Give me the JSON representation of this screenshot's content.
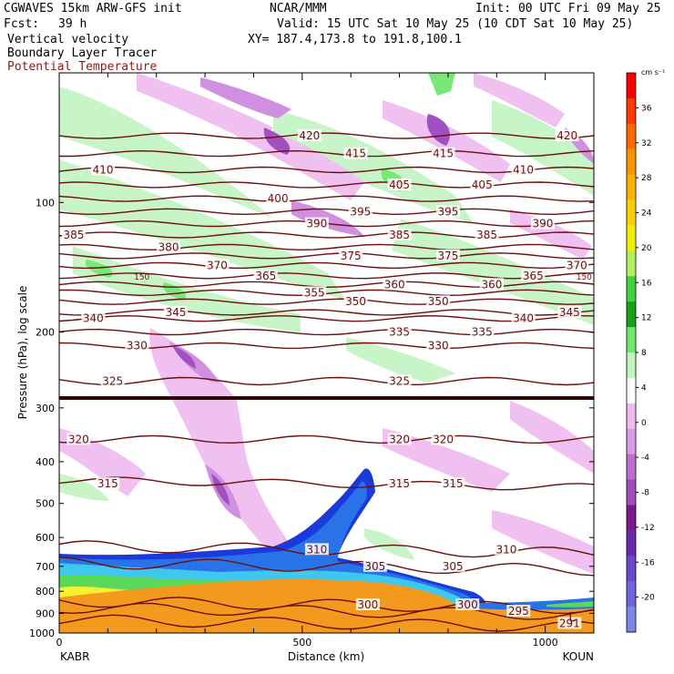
{
  "header": {
    "model": "CGWAVES 15km ARW-GFS init",
    "org": "NCAR/MMM",
    "init": "Init: 00 UTC Fri 09 May 25",
    "fcst_label": "Fcst:",
    "fcst_value": "39 h",
    "valid": "Valid: 15 UTC Sat 10 May 25 (10 CDT Sat 10 May 25)",
    "field1": "Vertical velocity",
    "field2": "Boundary Layer Tracer",
    "field3": "Potential Temperature",
    "xy": "XY= 187.4,173.8 to 191.8,100.1"
  },
  "colors": {
    "theta": "#6b0f0f",
    "field3_text": "#8b1a1a",
    "w_pos_light": "#c8f5c8",
    "w_pos": "#78e878",
    "w_pos_strong": "#22cc22",
    "w_neg_light": "#f0c0f0",
    "w_neg": "#d090e0",
    "w_neg_strong": "#a050c0",
    "w_neg_stronger": "#7a2a98",
    "tracer_orange": "#f39a1e",
    "tracer_yellow": "#f8f030",
    "tracer_green": "#5ad85a",
    "tracer_cyan": "#3ec8f0",
    "tracer_blue": "#2a72e8",
    "tracer_dblue": "#1a3adc"
  },
  "chart_data": {
    "type": "cross-section",
    "xlabel": "Distance (km)",
    "ylabel": "Pressure (hPa), log scale",
    "xlim": [
      0,
      1100
    ],
    "ylim": [
      1000,
      0
    ],
    "x_ticks": [
      {
        "value": 0,
        "label": "0"
      },
      {
        "value": 500,
        "label": "500"
      },
      {
        "value": 1000,
        "label": "1000"
      }
    ],
    "y_ticks": [
      {
        "value": 100,
        "label": "100"
      },
      {
        "value": 200,
        "label": "200"
      },
      {
        "value": 300,
        "label": "300"
      },
      {
        "value": 400,
        "label": "400"
      },
      {
        "value": 500,
        "label": "500"
      },
      {
        "value": 600,
        "label": "600"
      },
      {
        "value": 700,
        "label": "700"
      },
      {
        "value": 800,
        "label": "800"
      },
      {
        "value": 900,
        "label": "900"
      },
      {
        "value": 1000,
        "label": "1000"
      }
    ],
    "endpoints": {
      "left": "KABR",
      "right": "KOUN"
    },
    "colorbar": {
      "unit": "cm s⁻¹",
      "levels": [
        36,
        32,
        28,
        24,
        20,
        16,
        12,
        8,
        4,
        0,
        -4,
        -8,
        -12,
        -16,
        -20
      ],
      "colors": [
        "#ff0000",
        "#ff3a00",
        "#ff6a00",
        "#ff9200",
        "#ffb000",
        "#ffd000",
        "#f0f000",
        "#b0f060",
        "#40d040",
        "#18a018",
        "#70e870",
        "#c0f5c0",
        "#ffffff",
        "#eebbee",
        "#d89ae4",
        "#bd6ccf",
        "#a04cbe",
        "#7a1a8a",
        "#6a2aaa",
        "#6c48cc",
        "#6e64dc",
        "#7e86ea"
      ]
    },
    "isentropes": [
      {
        "theta": 420,
        "p": 70,
        "labels": [
          {
            "x": 515,
            "text": "420"
          },
          {
            "x": 1045,
            "text": "420"
          }
        ]
      },
      {
        "theta": 415,
        "p": 77,
        "labels": [
          {
            "x": 610,
            "text": "415"
          },
          {
            "x": 790,
            "text": "415"
          }
        ]
      },
      {
        "theta": 410,
        "p": 84,
        "labels": [
          {
            "x": 90,
            "text": "410"
          },
          {
            "x": 955,
            "text": "410"
          }
        ]
      },
      {
        "theta": 405,
        "p": 91,
        "labels": [
          {
            "x": 700,
            "text": "405"
          },
          {
            "x": 870,
            "text": "405"
          }
        ]
      },
      {
        "theta": 400,
        "p": 98,
        "labels": [
          {
            "x": 450,
            "text": "400"
          }
        ]
      },
      {
        "theta": 395,
        "p": 105,
        "labels": [
          {
            "x": 620,
            "text": "395"
          },
          {
            "x": 800,
            "text": "395"
          }
        ]
      },
      {
        "theta": 390,
        "p": 112,
        "labels": [
          {
            "x": 530,
            "text": "390"
          },
          {
            "x": 995,
            "text": "390"
          }
        ]
      },
      {
        "theta": 385,
        "p": 119,
        "labels": [
          {
            "x": 30,
            "text": "385"
          },
          {
            "x": 700,
            "text": "385"
          },
          {
            "x": 880,
            "text": "385"
          }
        ]
      },
      {
        "theta": 380,
        "p": 127,
        "labels": [
          {
            "x": 225,
            "text": "380"
          }
        ]
      },
      {
        "theta": 375,
        "p": 133,
        "labels": [
          {
            "x": 600,
            "text": "375"
          },
          {
            "x": 800,
            "text": "375"
          }
        ]
      },
      {
        "theta": 370,
        "p": 140,
        "labels": [
          {
            "x": 325,
            "text": "370"
          },
          {
            "x": 1065,
            "text": "370"
          }
        ]
      },
      {
        "theta": 365,
        "p": 148,
        "labels": [
          {
            "x": 425,
            "text": "365"
          },
          {
            "x": 975,
            "text": "365"
          }
        ]
      },
      {
        "theta": 360,
        "p": 155,
        "labels": [
          {
            "x": 690,
            "text": "360"
          },
          {
            "x": 890,
            "text": "360"
          }
        ]
      },
      {
        "theta": 355,
        "p": 162,
        "labels": [
          {
            "x": 525,
            "text": "355"
          }
        ]
      },
      {
        "theta": 350,
        "p": 170,
        "labels": [
          {
            "x": 610,
            "text": "350"
          },
          {
            "x": 780,
            "text": "350"
          }
        ]
      },
      {
        "theta": 345,
        "p": 180,
        "labels": [
          {
            "x": 240,
            "text": "345"
          },
          {
            "x": 1050,
            "text": "345"
          }
        ]
      },
      {
        "theta": 340,
        "p": 186,
        "labels": [
          {
            "x": 70,
            "text": "340"
          },
          {
            "x": 955,
            "text": "340"
          }
        ]
      },
      {
        "theta": 335,
        "p": 200,
        "labels": [
          {
            "x": 700,
            "text": "335"
          },
          {
            "x": 870,
            "text": "335"
          }
        ]
      },
      {
        "theta": 330,
        "p": 215,
        "labels": [
          {
            "x": 160,
            "text": "330"
          },
          {
            "x": 780,
            "text": "330"
          }
        ]
      },
      {
        "theta": 325,
        "p": 260,
        "labels": [
          {
            "x": 110,
            "text": "325"
          },
          {
            "x": 700,
            "text": "325"
          }
        ]
      },
      {
        "theta": 320,
        "p": 355,
        "labels": [
          {
            "x": 40,
            "text": "320"
          },
          {
            "x": 700,
            "text": "320"
          },
          {
            "x": 790,
            "text": "320"
          }
        ]
      },
      {
        "theta": 315,
        "p": 450,
        "labels": [
          {
            "x": 100,
            "text": "315"
          },
          {
            "x": 700,
            "text": "315"
          },
          {
            "x": 810,
            "text": "315"
          }
        ]
      },
      {
        "theta": 310,
        "p": 640,
        "labels": [
          {
            "x": 530,
            "text": "310"
          },
          {
            "x": 920,
            "text": "310"
          }
        ]
      },
      {
        "theta": 305,
        "p": 700,
        "labels": [
          {
            "x": 650,
            "text": "305"
          },
          {
            "x": 810,
            "text": "305"
          }
        ]
      },
      {
        "theta": 300,
        "p": 860,
        "labels": [
          {
            "x": 635,
            "text": "300"
          },
          {
            "x": 840,
            "text": "300"
          }
        ]
      },
      {
        "theta": 295,
        "p": 890,
        "labels": [
          {
            "x": 945,
            "text": "295"
          }
        ]
      },
      {
        "theta": 291,
        "p": 950,
        "labels": [
          {
            "x": 1050,
            "text": "291"
          }
        ]
      }
    ],
    "annotations": [
      {
        "text": "150",
        "x": 170,
        "p": 148
      },
      {
        "text": "150",
        "x": 1080,
        "p": 148
      },
      {
        "text": "L",
        "x": 1055,
        "p": 920
      }
    ]
  }
}
